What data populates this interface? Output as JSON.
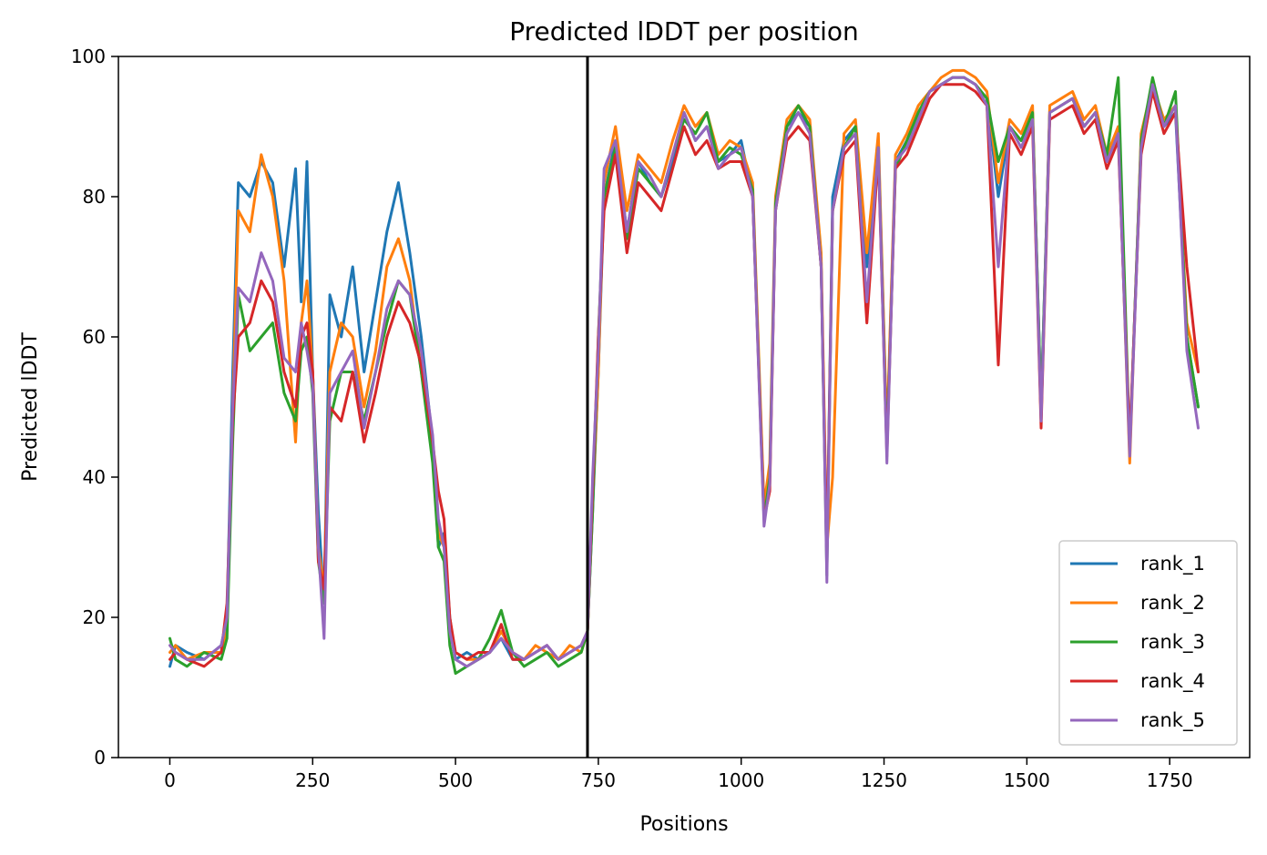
{
  "chart_data": {
    "type": "line",
    "title": "Predicted lDDT per position",
    "xlabel": "Positions",
    "ylabel": "Predicted lDDT",
    "xlim": [
      -90,
      1890
    ],
    "ylim": [
      0,
      100
    ],
    "xticks": [
      0,
      250,
      500,
      750,
      1000,
      1250,
      1500,
      1750
    ],
    "yticks": [
      0,
      20,
      40,
      60,
      80,
      100
    ],
    "grid": false,
    "legend_position": "lower-right",
    "vline_x": 731,
    "vline_color": "#000000",
    "series": [
      {
        "name": "rank_1",
        "color": "#1f77b4",
        "x": [
          0,
          10,
          30,
          60,
          90,
          100,
          110,
          120,
          140,
          160,
          180,
          200,
          220,
          230,
          240,
          250,
          260,
          270,
          280,
          300,
          320,
          340,
          360,
          380,
          400,
          420,
          440,
          460,
          470,
          480,
          490,
          500,
          520,
          540,
          560,
          580,
          600,
          620,
          640,
          660,
          680,
          700,
          720,
          731,
          740,
          750,
          760,
          780,
          800,
          820,
          840,
          860,
          880,
          900,
          920,
          940,
          960,
          980,
          1000,
          1020,
          1040,
          1050,
          1060,
          1080,
          1100,
          1120,
          1140,
          1150,
          1160,
          1180,
          1200,
          1220,
          1240,
          1255,
          1270,
          1290,
          1310,
          1330,
          1350,
          1370,
          1390,
          1410,
          1430,
          1450,
          1470,
          1490,
          1510,
          1525,
          1540,
          1560,
          1580,
          1600,
          1620,
          1640,
          1660,
          1680,
          1700,
          1720,
          1740,
          1760,
          1780,
          1800
        ],
        "values": [
          13,
          16,
          15,
          14,
          16,
          20,
          55,
          82,
          80,
          85,
          82,
          70,
          84,
          65,
          85,
          55,
          35,
          22,
          66,
          60,
          70,
          55,
          65,
          75,
          82,
          72,
          60,
          45,
          30,
          32,
          20,
          14,
          15,
          14,
          15,
          17,
          14,
          14,
          15,
          16,
          14,
          15,
          16,
          18,
          35,
          55,
          80,
          88,
          75,
          85,
          82,
          80,
          85,
          92,
          88,
          90,
          85,
          86,
          88,
          80,
          35,
          40,
          78,
          90,
          92,
          90,
          70,
          28,
          80,
          88,
          90,
          70,
          88,
          45,
          85,
          88,
          92,
          95,
          96,
          97,
          97,
          96,
          94,
          80,
          90,
          88,
          92,
          50,
          92,
          93,
          94,
          90,
          92,
          85,
          90,
          44,
          88,
          96,
          90,
          92,
          60,
          50
        ]
      },
      {
        "name": "rank_2",
        "color": "#ff7f0e",
        "x": [
          0,
          10,
          30,
          60,
          90,
          100,
          110,
          120,
          140,
          160,
          180,
          200,
          220,
          230,
          240,
          250,
          260,
          270,
          280,
          300,
          320,
          340,
          360,
          380,
          400,
          420,
          440,
          460,
          470,
          480,
          490,
          500,
          520,
          540,
          560,
          580,
          600,
          620,
          640,
          660,
          680,
          700,
          720,
          731,
          740,
          750,
          760,
          780,
          800,
          820,
          840,
          860,
          880,
          900,
          920,
          940,
          960,
          980,
          1000,
          1020,
          1040,
          1050,
          1060,
          1080,
          1100,
          1120,
          1140,
          1150,
          1160,
          1180,
          1200,
          1220,
          1240,
          1255,
          1270,
          1290,
          1310,
          1330,
          1350,
          1370,
          1390,
          1410,
          1430,
          1450,
          1470,
          1490,
          1510,
          1525,
          1540,
          1560,
          1580,
          1600,
          1620,
          1640,
          1660,
          1680,
          1700,
          1720,
          1740,
          1760,
          1780,
          1800
        ],
        "values": [
          15,
          16,
          14,
          15,
          15,
          18,
          50,
          78,
          75,
          86,
          80,
          68,
          45,
          62,
          68,
          55,
          30,
          24,
          55,
          62,
          60,
          50,
          58,
          70,
          74,
          68,
          55,
          44,
          32,
          30,
          18,
          15,
          14,
          14,
          15,
          18,
          15,
          14,
          16,
          15,
          14,
          16,
          15,
          18,
          36,
          55,
          82,
          90,
          78,
          86,
          84,
          82,
          88,
          93,
          90,
          92,
          86,
          88,
          87,
          82,
          36,
          42,
          80,
          91,
          93,
          91,
          72,
          30,
          40,
          89,
          91,
          72,
          89,
          46,
          86,
          89,
          93,
          95,
          97,
          98,
          98,
          97,
          95,
          82,
          91,
          89,
          93,
          48,
          93,
          94,
          95,
          91,
          93,
          86,
          90,
          42,
          89,
          96,
          91,
          93,
          62,
          55
        ]
      },
      {
        "name": "rank_3",
        "color": "#2ca02c",
        "x": [
          0,
          10,
          30,
          60,
          90,
          100,
          110,
          120,
          140,
          160,
          180,
          200,
          220,
          230,
          240,
          250,
          260,
          270,
          280,
          300,
          320,
          340,
          360,
          380,
          400,
          420,
          440,
          460,
          470,
          480,
          490,
          500,
          520,
          540,
          560,
          580,
          600,
          620,
          640,
          660,
          680,
          700,
          720,
          731,
          740,
          750,
          760,
          780,
          800,
          820,
          840,
          860,
          880,
          900,
          920,
          940,
          960,
          980,
          1000,
          1020,
          1040,
          1050,
          1060,
          1080,
          1100,
          1120,
          1140,
          1150,
          1160,
          1180,
          1200,
          1220,
          1240,
          1255,
          1270,
          1290,
          1310,
          1330,
          1350,
          1370,
          1390,
          1410,
          1430,
          1450,
          1470,
          1490,
          1510,
          1525,
          1540,
          1560,
          1580,
          1600,
          1620,
          1640,
          1660,
          1680,
          1700,
          1720,
          1740,
          1760,
          1780,
          1800
        ],
        "values": [
          17,
          14,
          13,
          15,
          14,
          17,
          45,
          66,
          58,
          60,
          62,
          52,
          48,
          58,
          60,
          52,
          28,
          22,
          48,
          55,
          55,
          48,
          55,
          62,
          68,
          66,
          55,
          42,
          30,
          28,
          16,
          12,
          13,
          14,
          17,
          21,
          15,
          13,
          14,
          15,
          13,
          14,
          15,
          18,
          35,
          60,
          80,
          87,
          74,
          84,
          82,
          80,
          86,
          91,
          89,
          92,
          85,
          87,
          86,
          81,
          34,
          40,
          79,
          90,
          93,
          90,
          70,
          26,
          78,
          87,
          90,
          64,
          87,
          44,
          84,
          88,
          92,
          95,
          96,
          97,
          97,
          96,
          94,
          85,
          90,
          88,
          92,
          50,
          92,
          93,
          94,
          90,
          92,
          86,
          97,
          44,
          88,
          97,
          90,
          95,
          60,
          50
        ]
      },
      {
        "name": "rank_4",
        "color": "#d62728",
        "x": [
          0,
          10,
          30,
          60,
          90,
          100,
          110,
          120,
          140,
          160,
          180,
          200,
          220,
          230,
          240,
          250,
          260,
          270,
          280,
          300,
          320,
          340,
          360,
          380,
          400,
          420,
          440,
          460,
          470,
          480,
          490,
          500,
          520,
          540,
          560,
          580,
          600,
          620,
          640,
          660,
          680,
          700,
          720,
          731,
          740,
          750,
          760,
          780,
          800,
          820,
          840,
          860,
          880,
          900,
          920,
          940,
          960,
          980,
          1000,
          1020,
          1040,
          1050,
          1060,
          1080,
          1100,
          1120,
          1140,
          1150,
          1160,
          1180,
          1200,
          1220,
          1240,
          1255,
          1270,
          1290,
          1310,
          1330,
          1350,
          1370,
          1390,
          1410,
          1430,
          1450,
          1470,
          1490,
          1510,
          1525,
          1540,
          1560,
          1580,
          1600,
          1620,
          1640,
          1660,
          1680,
          1700,
          1720,
          1740,
          1760,
          1780,
          1800
        ],
        "values": [
          14,
          15,
          14,
          13,
          15,
          22,
          48,
          60,
          62,
          68,
          65,
          55,
          50,
          60,
          62,
          55,
          28,
          24,
          50,
          48,
          55,
          45,
          52,
          60,
          65,
          62,
          56,
          45,
          38,
          34,
          20,
          15,
          14,
          15,
          15,
          19,
          14,
          14,
          15,
          16,
          14,
          15,
          16,
          18,
          38,
          60,
          78,
          86,
          72,
          82,
          80,
          78,
          84,
          90,
          86,
          88,
          84,
          85,
          85,
          80,
          34,
          38,
          78,
          88,
          90,
          88,
          70,
          28,
          78,
          86,
          88,
          62,
          86,
          43,
          84,
          86,
          90,
          94,
          96,
          96,
          96,
          95,
          93,
          56,
          89,
          86,
          90,
          47,
          91,
          92,
          93,
          89,
          91,
          84,
          88,
          45,
          86,
          95,
          89,
          92,
          70,
          55
        ]
      },
      {
        "name": "rank_5",
        "color": "#9467bd",
        "x": [
          0,
          10,
          30,
          60,
          90,
          100,
          110,
          120,
          140,
          160,
          180,
          200,
          220,
          230,
          240,
          250,
          260,
          270,
          280,
          300,
          320,
          340,
          360,
          380,
          400,
          420,
          440,
          460,
          470,
          480,
          490,
          500,
          520,
          540,
          560,
          580,
          600,
          620,
          640,
          660,
          680,
          700,
          720,
          731,
          740,
          750,
          760,
          780,
          800,
          820,
          840,
          860,
          880,
          900,
          920,
          940,
          960,
          980,
          1000,
          1020,
          1040,
          1050,
          1060,
          1080,
          1100,
          1120,
          1140,
          1150,
          1160,
          1180,
          1200,
          1220,
          1240,
          1255,
          1270,
          1290,
          1310,
          1330,
          1350,
          1370,
          1390,
          1410,
          1430,
          1450,
          1470,
          1490,
          1510,
          1525,
          1540,
          1560,
          1580,
          1600,
          1620,
          1640,
          1660,
          1680,
          1700,
          1720,
          1740,
          1760,
          1780,
          1800
        ],
        "values": [
          16,
          15,
          14,
          14,
          16,
          20,
          50,
          67,
          65,
          72,
          68,
          57,
          55,
          62,
          58,
          53,
          30,
          17,
          52,
          55,
          58,
          47,
          55,
          64,
          68,
          66,
          58,
          46,
          34,
          30,
          18,
          14,
          13,
          14,
          15,
          17,
          15,
          14,
          15,
          16,
          14,
          15,
          16,
          18,
          40,
          58,
          84,
          88,
          75,
          85,
          83,
          80,
          86,
          92,
          88,
          90,
          84,
          86,
          87,
          80,
          33,
          39,
          78,
          89,
          92,
          89,
          70,
          25,
          78,
          87,
          89,
          65,
          87,
          42,
          85,
          87,
          91,
          95,
          96,
          97,
          97,
          96,
          93,
          70,
          90,
          87,
          91,
          48,
          92,
          93,
          94,
          90,
          92,
          85,
          89,
          43,
          87,
          96,
          90,
          93,
          58,
          47
        ]
      }
    ]
  }
}
